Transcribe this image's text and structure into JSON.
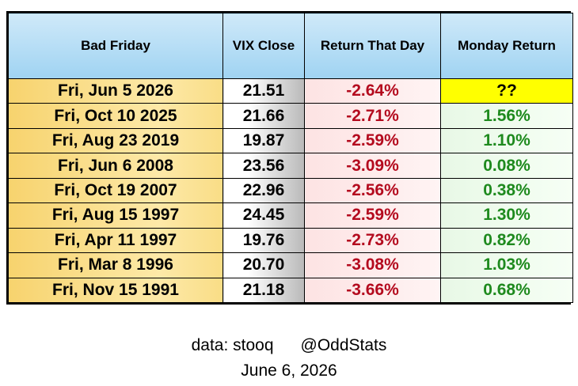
{
  "chart_data": {
    "type": "table",
    "columns": [
      "Bad Friday",
      "VIX Close",
      "Return That Day",
      "Monday Return"
    ],
    "rows": [
      {
        "date": "Fri, Jun 5 2026",
        "vix": "21.51",
        "ret": "-2.64%",
        "mon": "??"
      },
      {
        "date": "Fri, Oct 10 2025",
        "vix": "21.66",
        "ret": "-2.71%",
        "mon": "1.56%"
      },
      {
        "date": "Fri, Aug 23 2019",
        "vix": "19.87",
        "ret": "-2.59%",
        "mon": "1.10%"
      },
      {
        "date": "Fri, Jun 6 2008",
        "vix": "23.56",
        "ret": "-3.09%",
        "mon": "0.08%"
      },
      {
        "date": "Fri, Oct 19 2007",
        "vix": "22.96",
        "ret": "-2.56%",
        "mon": "0.38%"
      },
      {
        "date": "Fri, Aug 15 1997",
        "vix": "24.45",
        "ret": "-2.59%",
        "mon": "1.30%"
      },
      {
        "date": "Fri, Apr 11 1997",
        "vix": "19.76",
        "ret": "-2.73%",
        "mon": "0.82%"
      },
      {
        "date": "Fri, Mar 8 1996",
        "vix": "20.70",
        "ret": "-3.08%",
        "mon": "1.03%"
      },
      {
        "date": "Fri, Nov 15 1991",
        "vix": "21.18",
        "ret": "-3.66%",
        "mon": "0.68%"
      }
    ]
  },
  "footer": {
    "source": "data: stooq",
    "handle": "@OddStats",
    "date": "June 6, 2026"
  },
  "colors": {
    "negative": "#b40a1e",
    "positive": "#1e8a1e",
    "highlight": "#ffff00"
  }
}
